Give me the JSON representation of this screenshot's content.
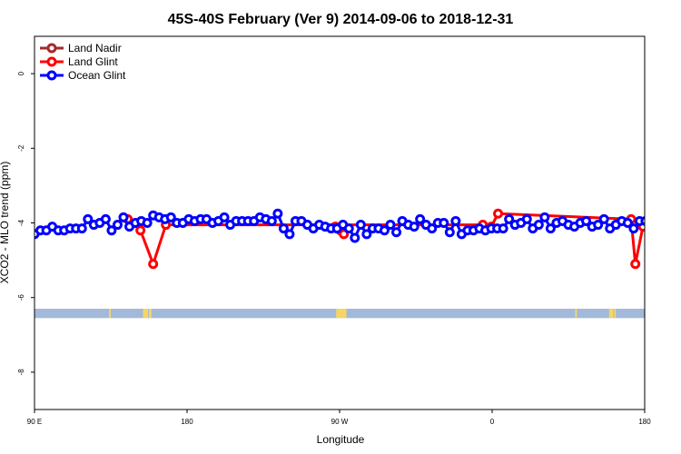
{
  "chart_data": {
    "type": "line",
    "title": "45S-40S February (Ver 9)   2014-09-06 to 2018-12-31",
    "xlabel": "Longitude",
    "ylabel": "XCO2 - MLO trend (ppm)",
    "xlim": [
      90,
      450
    ],
    "ylim": [
      -9,
      1
    ],
    "x_ticks": [
      {
        "value": 90,
        "label": "90 E"
      },
      {
        "value": 180,
        "label": "180"
      },
      {
        "value": 270,
        "label": "90 W"
      },
      {
        "value": 360,
        "label": "0"
      },
      {
        "value": 450,
        "label": "180"
      }
    ],
    "y_ticks": [
      {
        "value": 0,
        "label": "0"
      },
      {
        "value": -2,
        "label": "-2"
      },
      {
        "value": -4,
        "label": "-4"
      },
      {
        "value": -6,
        "label": "-6"
      },
      {
        "value": -8,
        "label": "-8"
      }
    ],
    "legend": {
      "position": "top-left",
      "items": [
        {
          "name": "Land Nadir",
          "color": "#a52a2a"
        },
        {
          "name": "Land Glint",
          "color": "#ff0000"
        },
        {
          "name": "Ocean Glint",
          "color": "#0000ff"
        }
      ]
    },
    "series": [
      {
        "name": "Land Glint",
        "color": "#ff0000",
        "x": [
          145,
          152.5,
          160,
          167.5,
          354.5,
          359.5,
          363.5,
          442,
          444.5,
          449,
          452.5
        ],
        "y": [
          -3.9,
          -4.2,
          -5.1,
          -4.05,
          -4.05,
          -4.1,
          -3.75,
          -3.9,
          -5.1,
          -4.1,
          -4.0
        ]
      },
      {
        "name": "Land Glint",
        "color": "#ff0000",
        "x": [
          267.5,
          270.5,
          272.5
        ],
        "y": [
          -4.1,
          -4.2,
          -4.3
        ]
      },
      {
        "name": "Ocean Glint",
        "color": "#0000ff",
        "x": [
          90,
          93.5,
          97,
          100.5,
          104,
          107.5,
          111,
          114.5,
          118,
          121.5,
          125,
          128.5,
          132,
          135.5,
          139,
          142.5,
          146,
          149.5,
          153,
          156.5,
          160,
          163.5,
          167,
          170.5,
          174,
          177.5,
          181,
          184.5,
          188,
          191.5,
          195,
          198.5,
          202,
          205.5,
          209,
          212.5,
          216,
          219.5,
          223,
          226.5,
          230,
          233.5,
          237,
          240.5,
          244,
          247.5,
          251,
          254.5,
          258,
          261.5,
          265,
          268.5,
          272,
          275.5,
          279,
          282.5,
          286,
          289.5,
          293,
          296.5,
          300,
          303.5,
          307,
          310.5,
          314,
          317.5,
          321,
          324.5,
          328,
          331.5,
          335,
          338.5,
          342,
          345.5,
          349,
          352.5,
          356,
          359.5,
          363,
          366.5,
          370,
          373.5,
          377,
          380.5,
          384,
          387.5,
          391,
          394.5,
          398,
          401.5,
          405,
          408.5,
          412,
          415.5,
          419,
          422.5,
          426,
          429.5,
          433,
          436.5,
          440,
          443.5,
          447,
          450.5
        ],
        "y": [
          -4.3,
          -4.2,
          -4.2,
          -4.1,
          -4.2,
          -4.2,
          -4.15,
          -4.15,
          -4.15,
          -3.9,
          -4.05,
          -4.0,
          -3.9,
          -4.2,
          -4.05,
          -3.85,
          -4.1,
          -4.0,
          -3.95,
          -4.0,
          -3.8,
          -3.85,
          -3.9,
          -3.85,
          -4.0,
          -4.0,
          -3.9,
          -3.95,
          -3.9,
          -3.9,
          -4.0,
          -3.95,
          -3.85,
          -4.05,
          -3.95,
          -3.95,
          -3.95,
          -3.95,
          -3.85,
          -3.9,
          -3.95,
          -3.75,
          -4.15,
          -4.3,
          -3.95,
          -3.95,
          -4.05,
          -4.15,
          -4.05,
          -4.1,
          -4.15,
          -4.15,
          -4.05,
          -4.15,
          -4.4,
          -4.05,
          -4.3,
          -4.15,
          -4.15,
          -4.2,
          -4.05,
          -4.25,
          -3.95,
          -4.05,
          -4.1,
          -3.9,
          -4.05,
          -4.15,
          -4.0,
          -4.0,
          -4.25,
          -3.95,
          -4.3,
          -4.2,
          -4.2,
          -4.15,
          -4.2,
          -4.15,
          -4.15,
          -4.15,
          -3.9,
          -4.05,
          -4.0,
          -3.9,
          -4.15,
          -4.05,
          -3.85,
          -4.15,
          -4.0,
          -3.95,
          -4.05,
          -4.1,
          -4.0,
          -3.95,
          -4.1,
          -4.05,
          -3.9,
          -4.15,
          -4.05,
          -3.95,
          -4.0,
          -4.15,
          -3.95,
          -3.95
        ]
      }
    ],
    "surface_bar": {
      "y_range": [
        -6.55,
        -6.3
      ],
      "ocean_color": "#a3b9d9",
      "land_color": "#f6d565",
      "land_spans": [
        [
          134,
          135
        ],
        [
          154,
          157
        ],
        [
          157.5,
          159
        ],
        [
          268,
          274
        ],
        [
          409,
          410
        ],
        [
          429,
          431.5
        ],
        [
          432,
          433
        ]
      ]
    }
  }
}
